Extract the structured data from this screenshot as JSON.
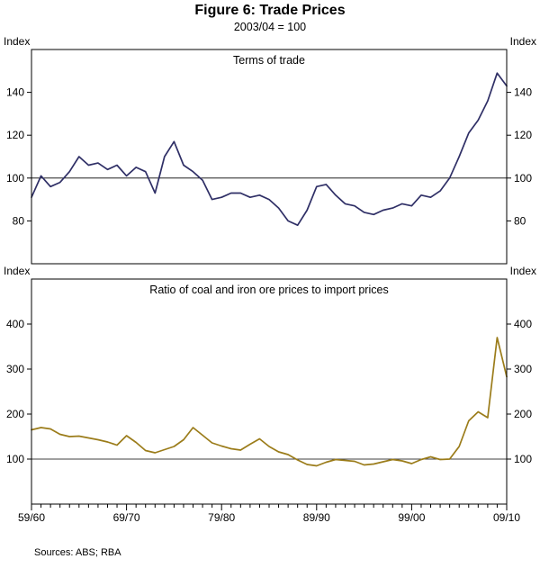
{
  "figure": {
    "title": "Figure 6: Trade Prices",
    "subtitle": "2003/04 = 100",
    "sources": "Sources: ABS; RBA"
  },
  "chart_data": [
    {
      "type": "line",
      "panel": "top",
      "title": "Terms of trade",
      "unit_label_left": "Index",
      "unit_label_right": "Index",
      "ylim": [
        60,
        160
      ],
      "yticks": [
        80,
        100,
        120,
        140
      ],
      "reference_line": 100,
      "grid": "reference line at 100 only",
      "legend": "none",
      "x_tick_labels": [
        "59/60",
        "69/70",
        "79/80",
        "89/90",
        "99/00",
        "09/10"
      ],
      "x_tick_positions": [
        0,
        10,
        20,
        30,
        40,
        50
      ],
      "categories": [
        "59/60",
        "60/61",
        "61/62",
        "62/63",
        "63/64",
        "64/65",
        "65/66",
        "66/67",
        "67/68",
        "68/69",
        "69/70",
        "70/71",
        "71/72",
        "72/73",
        "73/74",
        "74/75",
        "75/76",
        "76/77",
        "77/78",
        "78/79",
        "79/80",
        "80/81",
        "81/82",
        "82/83",
        "83/84",
        "84/85",
        "85/86",
        "86/87",
        "87/88",
        "88/89",
        "89/90",
        "90/91",
        "91/92",
        "92/93",
        "93/94",
        "94/95",
        "95/96",
        "96/97",
        "97/98",
        "98/99",
        "99/00",
        "00/01",
        "01/02",
        "02/03",
        "03/04",
        "04/05",
        "05/06",
        "06/07",
        "07/08",
        "08/09",
        "09/10"
      ],
      "series": [
        {
          "name": "Terms of trade",
          "color": "#2f2f66",
          "values": [
            91,
            101,
            96,
            98,
            103,
            110,
            106,
            107,
            104,
            106,
            101,
            105,
            103,
            93,
            110,
            117,
            106,
            103,
            99,
            90,
            91,
            93,
            93,
            91,
            92,
            90,
            86,
            80,
            78,
            85,
            96,
            97,
            92,
            88,
            87,
            84,
            83,
            85,
            86,
            88,
            87,
            92,
            91,
            94,
            100,
            110,
            121,
            127,
            136,
            149,
            143
          ]
        }
      ]
    },
    {
      "type": "line",
      "panel": "bottom",
      "title": "Ratio of coal and iron ore prices to import prices",
      "unit_label_left": "Index",
      "unit_label_right": "Index",
      "ylim": [
        0,
        500
      ],
      "yticks": [
        100,
        200,
        300,
        400
      ],
      "reference_line": 100,
      "grid": "reference line at 100 only",
      "legend": "none",
      "x_tick_labels": [
        "59/60",
        "69/70",
        "79/80",
        "89/90",
        "99/00",
        "09/10"
      ],
      "x_tick_positions": [
        0,
        10,
        20,
        30,
        40,
        50
      ],
      "categories": [
        "59/60",
        "60/61",
        "61/62",
        "62/63",
        "63/64",
        "64/65",
        "65/66",
        "66/67",
        "67/68",
        "68/69",
        "69/70",
        "70/71",
        "71/72",
        "72/73",
        "73/74",
        "74/75",
        "75/76",
        "76/77",
        "77/78",
        "78/79",
        "79/80",
        "80/81",
        "81/82",
        "82/83",
        "83/84",
        "84/85",
        "85/86",
        "86/87",
        "87/88",
        "88/89",
        "89/90",
        "90/91",
        "91/92",
        "92/93",
        "93/94",
        "94/95",
        "95/96",
        "96/97",
        "97/98",
        "98/99",
        "99/00",
        "00/01",
        "01/02",
        "02/03",
        "03/04",
        "04/05",
        "05/06",
        "06/07",
        "07/08",
        "08/09",
        "09/10"
      ],
      "series": [
        {
          "name": "Ratio of coal and iron ore prices to import prices",
          "color": "#9b7c1a",
          "values": [
            165,
            170,
            167,
            155,
            150,
            151,
            147,
            143,
            138,
            131,
            152,
            137,
            119,
            114,
            121,
            128,
            143,
            170,
            153,
            136,
            129,
            123,
            120,
            133,
            145,
            128,
            116,
            110,
            98,
            88,
            85,
            93,
            99,
            97,
            95,
            87,
            89,
            94,
            99,
            96,
            90,
            99,
            105,
            99,
            100,
            128,
            185,
            205,
            192,
            370,
            283
          ]
        }
      ]
    }
  ]
}
